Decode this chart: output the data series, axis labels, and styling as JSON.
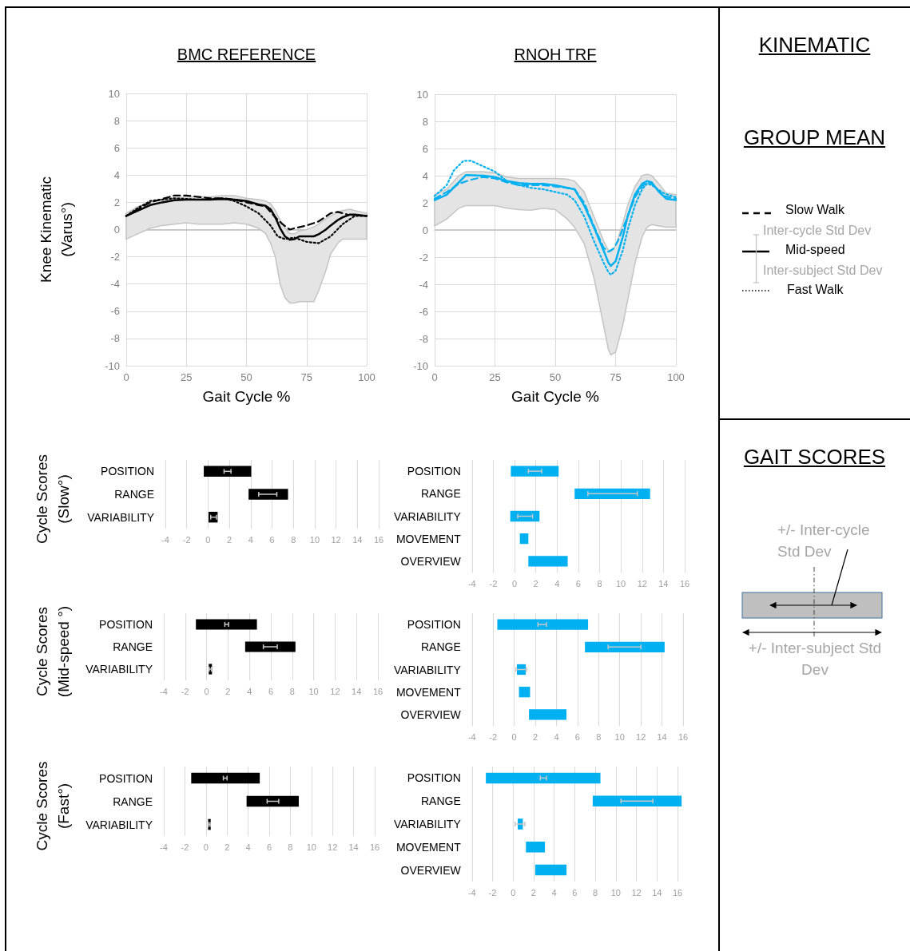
{
  "chart_data": [
    {
      "type": "line",
      "title": "BMC REFERENCE",
      "xlabel": "Gait Cycle %",
      "ylabel": "Knee Kinematic\n(Varus°)",
      "xlim": [
        0,
        100
      ],
      "xticks": [
        0,
        25,
        50,
        75,
        100
      ],
      "ylim": [
        -10,
        10
      ],
      "yticks": [
        -10,
        -8,
        -6,
        -4,
        -2,
        0,
        2,
        4,
        6,
        8,
        10
      ],
      "grid": true,
      "series": [
        {
          "color": "#000000",
          "line_style": "dashed",
          "x": [
            0,
            10,
            20,
            25,
            30,
            35,
            40,
            45,
            50,
            55,
            58,
            62,
            65,
            68,
            70,
            75,
            80,
            85,
            88,
            92,
            100
          ],
          "values": [
            1.0,
            2.0,
            2.5,
            2.5,
            2.4,
            2.3,
            2.3,
            2.2,
            2.0,
            1.8,
            1.7,
            0.9,
            0.4,
            0.0,
            0.1,
            0.3,
            0.6,
            1.2,
            1.3,
            1.1,
            1.0
          ]
        },
        {
          "color": "#000000",
          "line_style": "solid",
          "x": [
            0,
            5,
            10,
            15,
            20,
            25,
            30,
            35,
            40,
            45,
            50,
            55,
            58,
            60,
            62,
            64,
            66,
            68,
            70,
            72,
            75,
            78,
            80,
            83,
            85,
            88,
            90,
            93,
            95,
            100
          ],
          "values": [
            1.0,
            1.4,
            1.8,
            2.0,
            2.15,
            2.2,
            2.2,
            2.2,
            2.25,
            2.2,
            2.1,
            1.85,
            1.75,
            1.5,
            0.9,
            0.1,
            -0.5,
            -0.75,
            -0.7,
            -0.5,
            -0.5,
            -0.5,
            -0.35,
            0.0,
            0.3,
            0.7,
            0.9,
            1.1,
            1.1,
            1.0
          ],
          "upper": [
            1.2,
            1.7,
            2.0,
            2.2,
            2.3,
            2.4,
            2.4,
            2.4,
            2.5,
            2.5,
            2.3,
            2.2,
            2.1,
            1.9,
            1.4,
            0.7,
            0.1,
            -0.3,
            -0.3,
            -0.1,
            0.0,
            0.2,
            0.4,
            0.8,
            1.0,
            1.3,
            1.4,
            1.5,
            1.4,
            1.2
          ],
          "lower": [
            -0.7,
            -0.3,
            0.1,
            0.3,
            0.4,
            0.5,
            0.4,
            0.4,
            0.4,
            0.5,
            0.4,
            0.1,
            -0.3,
            -1.0,
            -2.0,
            -4.0,
            -5.0,
            -5.4,
            -5.4,
            -5.3,
            -5.3,
            -5.3,
            -4.5,
            -3.0,
            -1.8,
            -1.0,
            -0.7,
            -0.7,
            -0.7,
            -0.7
          ]
        },
        {
          "color": "#000000",
          "line_style": "dotted",
          "x": [
            0,
            5,
            10,
            20,
            30,
            40,
            45,
            50,
            55,
            60,
            63,
            66,
            70,
            75,
            80,
            85,
            90,
            95,
            100
          ],
          "values": [
            1.0,
            1.6,
            2.1,
            2.3,
            2.2,
            2.3,
            2.1,
            1.7,
            1.2,
            0.3,
            -0.5,
            -0.7,
            -0.6,
            -0.9,
            -1.0,
            -0.5,
            0.4,
            1.0,
            1.0
          ]
        }
      ]
    },
    {
      "type": "line",
      "title": "RNOH TRF",
      "xlabel": "Gait Cycle %",
      "xlim": [
        0,
        100
      ],
      "xticks": [
        0,
        25,
        50,
        75,
        100
      ],
      "ylim": [
        -10,
        10
      ],
      "yticks": [
        -10,
        -8,
        -6,
        -4,
        -2,
        0,
        2,
        4,
        6,
        8,
        10
      ],
      "grid": true,
      "series": [
        {
          "color": "#00b0f0",
          "line_style": "dashed",
          "x": [
            0,
            5,
            10,
            15,
            20,
            25,
            30,
            35,
            40,
            45,
            50,
            55,
            58,
            62,
            66,
            70,
            72,
            74,
            76,
            80,
            83,
            86,
            88,
            90,
            95,
            100
          ],
          "values": [
            2.3,
            2.8,
            3.4,
            3.7,
            3.9,
            3.8,
            3.5,
            3.3,
            3.3,
            3.3,
            3.2,
            3.1,
            3.0,
            2.0,
            0.3,
            -1.3,
            -1.6,
            -1.4,
            -0.8,
            1.0,
            2.4,
            3.2,
            3.5,
            3.4,
            2.5,
            2.3
          ]
        },
        {
          "color": "#00b0f0",
          "line_style": "solid",
          "x": [
            0,
            5,
            10,
            13,
            20,
            25,
            30,
            35,
            40,
            45,
            50,
            55,
            58,
            62,
            66,
            70,
            72,
            73,
            75,
            78,
            80,
            83,
            86,
            88,
            90,
            93,
            96,
            100
          ],
          "values": [
            2.2,
            2.6,
            3.5,
            4.05,
            4.0,
            3.9,
            3.6,
            3.45,
            3.4,
            3.4,
            3.3,
            3.1,
            3.0,
            1.8,
            0.2,
            -1.5,
            -2.4,
            -2.65,
            -2.3,
            -0.5,
            1.0,
            2.6,
            3.4,
            3.6,
            3.5,
            2.8,
            2.3,
            2.2
          ],
          "upper": [
            2.6,
            3.0,
            4.0,
            4.3,
            4.3,
            4.2,
            3.9,
            3.8,
            3.8,
            3.8,
            3.8,
            3.75,
            3.6,
            2.8,
            1.0,
            -0.8,
            -1.5,
            -1.6,
            -1.2,
            0.5,
            1.8,
            3.2,
            4.0,
            4.1,
            4.0,
            3.4,
            2.7,
            2.6
          ],
          "lower": [
            0.3,
            0.8,
            1.6,
            1.8,
            1.8,
            1.8,
            1.6,
            1.5,
            1.45,
            1.6,
            1.5,
            0.8,
            0.2,
            -1.0,
            -3.5,
            -7.0,
            -8.8,
            -9.2,
            -9.0,
            -7.0,
            -5.2,
            -2.5,
            -0.5,
            0.2,
            0.4,
            0.3,
            0.2,
            0.2
          ]
        },
        {
          "color": "#00b0f0",
          "line_style": "dotted",
          "x": [
            0,
            5,
            8,
            12,
            15,
            20,
            25,
            30,
            35,
            40,
            45,
            50,
            55,
            58,
            62,
            66,
            70,
            72,
            73,
            75,
            78,
            80,
            83,
            86,
            88,
            90,
            95,
            100
          ],
          "values": [
            2.5,
            3.3,
            4.4,
            5.1,
            5.1,
            4.7,
            4.3,
            3.6,
            3.3,
            3.1,
            3.0,
            2.8,
            2.6,
            2.2,
            1.0,
            -0.8,
            -2.4,
            -3.1,
            -3.3,
            -3.0,
            -1.5,
            0.0,
            1.8,
            3.0,
            3.4,
            3.3,
            2.7,
            2.4
          ]
        }
      ]
    },
    {
      "type": "bar",
      "orientation": "horizontal",
      "ylabel": "Cycle Scores\n(Slow°)",
      "categories": [
        "POSITION",
        "RANGE",
        "VARIABILITY"
      ],
      "base": [
        -0.4,
        3.8,
        0.05
      ],
      "values": [
        4.45,
        3.7,
        0.85
      ],
      "errors": [
        [
          1.5,
          2.15
        ],
        [
          4.75,
          6.45
        ],
        [
          0.25,
          0.8
        ]
      ],
      "color": "#000000",
      "xlim": [
        -4,
        16
      ],
      "xticks": [
        -4,
        -2,
        0,
        2,
        4,
        6,
        8,
        10,
        12,
        14,
        16
      ],
      "grid": "x"
    },
    {
      "type": "bar",
      "orientation": "horizontal",
      "categories": [
        "POSITION",
        "RANGE",
        "VARIABILITY",
        "MOVEMENT",
        "OVERVIEW"
      ],
      "base": [
        -0.35,
        5.65,
        -0.4,
        0.5,
        1.3
      ],
      "values": [
        4.5,
        7.1,
        2.75,
        0.8,
        3.7
      ],
      "errors": [
        [
          1.3,
          2.55
        ],
        [
          6.9,
          11.55
        ],
        [
          0.3,
          1.7
        ],
        null,
        null
      ],
      "color": "#00b0f0",
      "xlim": [
        -4,
        16
      ],
      "xticks": [
        -4,
        -2,
        0,
        2,
        4,
        6,
        8,
        10,
        12,
        14,
        16
      ],
      "grid": "x"
    },
    {
      "type": "bar",
      "orientation": "horizontal",
      "ylabel": "Cycle Scores\n(Mid-speed °)",
      "categories": [
        "POSITION",
        "RANGE",
        "VARIABILITY"
      ],
      "base": [
        -1.0,
        3.6,
        0.2
      ],
      "values": [
        5.7,
        4.7,
        0.3
      ],
      "errors": [
        [
          1.7,
          2.05
        ],
        [
          5.3,
          6.6
        ],
        [
          0.25,
          0.45
        ]
      ],
      "color": "#000000",
      "xlim": [
        -4,
        16
      ],
      "xticks": [
        -4,
        -2,
        0,
        2,
        4,
        6,
        8,
        10,
        12,
        14,
        16
      ],
      "grid": "x"
    },
    {
      "type": "bar",
      "orientation": "horizontal",
      "categories": [
        "POSITION",
        "RANGE",
        "VARIABILITY",
        "MOVEMENT",
        "OVERVIEW"
      ],
      "base": [
        -1.6,
        6.7,
        0.25,
        0.45,
        1.4
      ],
      "values": [
        8.6,
        7.55,
        0.85,
        1.05,
        3.55
      ],
      "errors": [
        [
          2.25,
          3.05
        ],
        [
          8.9,
          12.0
        ],
        [
          0.15,
          1.2
        ],
        null,
        null
      ],
      "color": "#00b0f0",
      "xlim": [
        -4,
        16
      ],
      "xticks": [
        -4,
        -2,
        0,
        2,
        4,
        6,
        8,
        10,
        12,
        14,
        16
      ],
      "grid": "x"
    },
    {
      "type": "bar",
      "orientation": "horizontal",
      "ylabel": "Cycle Scores\n(Fast°)",
      "categories": [
        "POSITION",
        "RANGE",
        "VARIABILITY"
      ],
      "base": [
        -1.4,
        3.85,
        0.2
      ],
      "values": [
        6.5,
        4.95,
        0.25
      ],
      "errors": [
        [
          1.65,
          2.0
        ],
        [
          5.8,
          6.9
        ],
        [
          0.25,
          0.4
        ]
      ],
      "color": "#000000",
      "xlim": [
        -4,
        16
      ],
      "xticks": [
        -4,
        -2,
        0,
        2,
        4,
        6,
        8,
        10,
        12,
        14,
        16
      ],
      "grid": "x"
    },
    {
      "type": "bar",
      "orientation": "horizontal",
      "categories": [
        "POSITION",
        "RANGE",
        "VARIABILITY",
        "MOVEMENT",
        "OVERVIEW"
      ],
      "base": [
        -2.65,
        7.75,
        0.45,
        1.25,
        2.15
      ],
      "values": [
        11.15,
        8.65,
        0.5,
        1.85,
        3.05
      ],
      "errors": [
        [
          2.65,
          3.25
        ],
        [
          10.5,
          13.6
        ],
        [
          0.2,
          1.15
        ],
        null,
        null
      ],
      "color": "#00b0f0",
      "xlim": [
        -4,
        16
      ],
      "xticks": [
        -4,
        -2,
        0,
        2,
        4,
        6,
        8,
        10,
        12,
        14,
        16
      ],
      "grid": "x"
    },
    {
      "type": "other",
      "title": "KINEMATIC",
      "subtitle": "GROUP MEAN",
      "annotations": [
        "Slow Walk",
        "Inter-cycle Std Dev",
        "Mid-speed",
        "Inter-subject Std Dev",
        "Fast Walk",
        "GAIT SCORES",
        "+/- Inter-cycle Std Dev",
        "+/- Inter-subject Std Dev"
      ]
    }
  ]
}
